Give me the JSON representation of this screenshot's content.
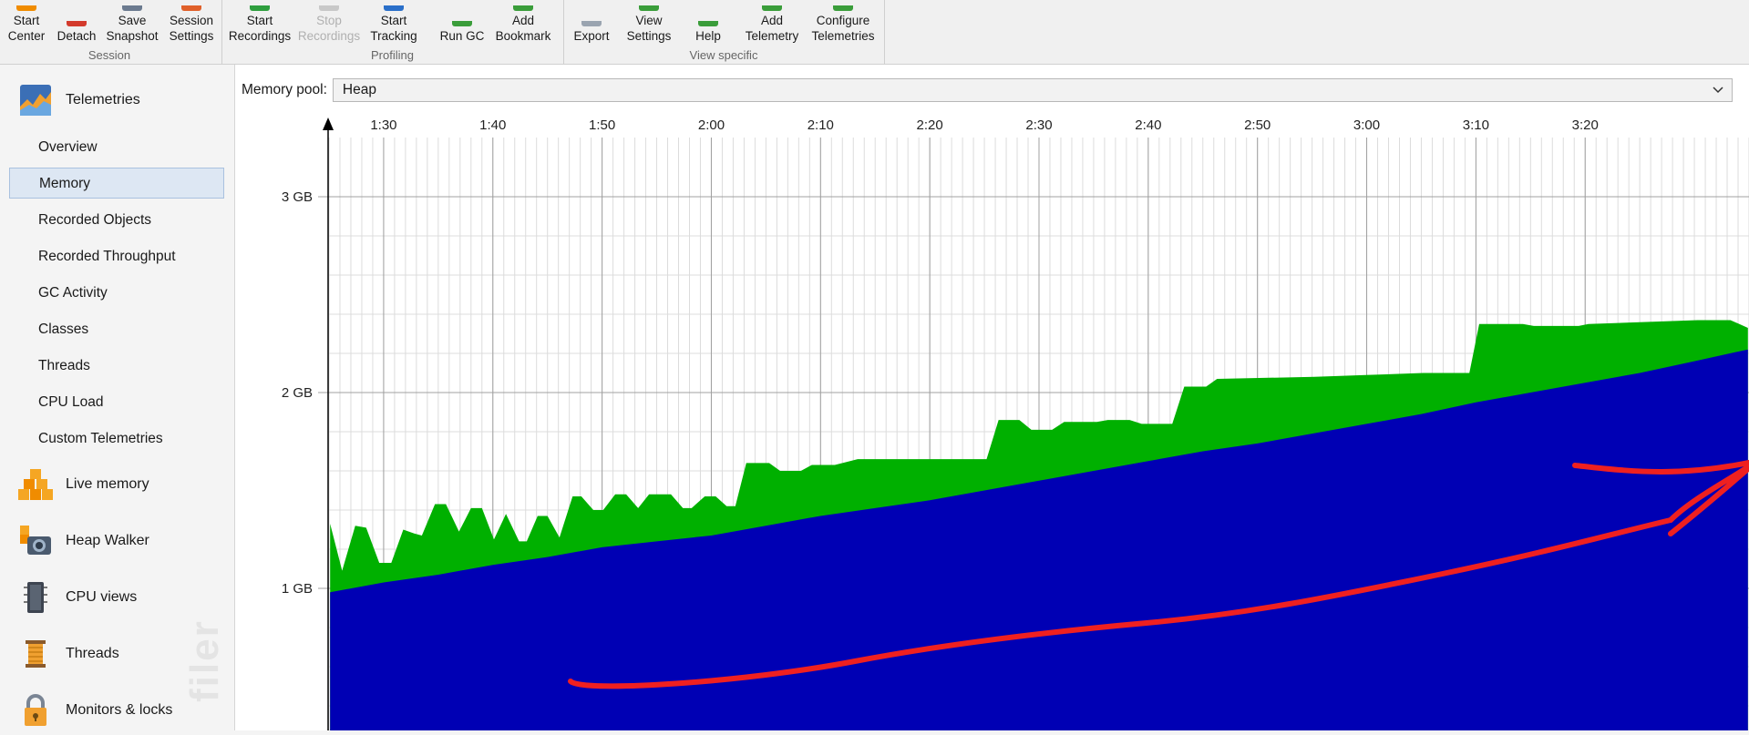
{
  "toolbar": {
    "groups": [
      {
        "label": "Session",
        "buttons": [
          {
            "label": "Start\nCenter",
            "icon": "start-center-icon",
            "color": "#f08c00"
          },
          {
            "label": "Detach",
            "icon": "detach-icon",
            "color": "#d33a2c"
          },
          {
            "label": "Save\nSnapshot",
            "icon": "save-snapshot-icon",
            "color": "#6b7a8f"
          },
          {
            "label": "Session\nSettings",
            "icon": "session-settings-icon",
            "color": "#e0602a"
          }
        ]
      },
      {
        "label": "Profiling",
        "buttons": [
          {
            "label": "Start\nRecordings",
            "icon": "start-recordings-icon",
            "color": "#2e9e3e"
          },
          {
            "label": "Stop\nRecordings",
            "icon": "stop-recordings-icon",
            "color": "#c8c8c8",
            "disabled": true
          },
          {
            "label": "Start\nTracking",
            "icon": "start-tracking-icon",
            "color": "#2a6fc9"
          },
          {
            "label": "Run GC",
            "icon": "run-gc-icon",
            "color": "#3a9d3a"
          },
          {
            "label": "Add\nBookmark",
            "icon": "add-bookmark-icon",
            "color": "#3a9d3a"
          }
        ]
      },
      {
        "label": "View specific",
        "buttons": [
          {
            "label": "Export",
            "icon": "export-icon",
            "color": "#9aa4b0"
          },
          {
            "label": "View\nSettings",
            "icon": "view-settings-icon",
            "color": "#3a9d3a"
          },
          {
            "label": "Help",
            "icon": "help-icon",
            "color": "#3a9d3a"
          },
          {
            "label": "Add\nTelemetry",
            "icon": "add-telemetry-icon",
            "color": "#3a9d3a"
          },
          {
            "label": "Configure\nTelemetries",
            "icon": "configure-telemetries-icon",
            "color": "#3a9d3a"
          }
        ]
      }
    ]
  },
  "sidebar": {
    "telemetries_title": "Telemetries",
    "sub_items": [
      {
        "label": "Overview"
      },
      {
        "label": "Memory",
        "selected": true
      },
      {
        "label": "Recorded Objects"
      },
      {
        "label": "Recorded Throughput"
      },
      {
        "label": "GC Activity"
      },
      {
        "label": "Classes"
      },
      {
        "label": "Threads"
      },
      {
        "label": "CPU Load"
      },
      {
        "label": "Custom Telemetries"
      }
    ],
    "sections": [
      {
        "label": "Live memory",
        "icon": "live-memory-icon"
      },
      {
        "label": "Heap Walker",
        "icon": "heap-walker-icon"
      },
      {
        "label": "CPU views",
        "icon": "cpu-views-icon"
      },
      {
        "label": "Threads",
        "icon": "threads-icon"
      },
      {
        "label": "Monitors & locks",
        "icon": "monitors-locks-icon"
      }
    ],
    "watermark": "filer"
  },
  "main": {
    "pool_label": "Memory pool:",
    "pool_value": "Heap"
  },
  "colors": {
    "free_heap": "#00b000",
    "used_heap": "#0000b4",
    "annotation": "#ef2020",
    "grid_major": "#a0a0a0",
    "grid_minor": "#dcdcdc"
  },
  "chart_data": {
    "type": "area",
    "x_unit": "minutes",
    "x_ticks": [
      "1:30",
      "1:40",
      "1:50",
      "2:00",
      "2:10",
      "2:20",
      "2:30",
      "2:40",
      "2:50",
      "3:00",
      "3:10",
      "3:20"
    ],
    "y_ticks": [
      "1 GB",
      "2 GB",
      "3 GB"
    ],
    "y_unit": "GB",
    "ylim": [
      0,
      3.0
    ],
    "xlim": [
      85,
      215
    ],
    "series": [
      {
        "name": "used",
        "points": [
          [
            85.1,
            0.98
          ],
          [
            90,
            1.03
          ],
          [
            95,
            1.07
          ],
          [
            100,
            1.12
          ],
          [
            105,
            1.16
          ],
          [
            110,
            1.21
          ],
          [
            115,
            1.24
          ],
          [
            120,
            1.27
          ],
          [
            125,
            1.32
          ],
          [
            130,
            1.37
          ],
          [
            135,
            1.41
          ],
          [
            140,
            1.45
          ],
          [
            145,
            1.5
          ],
          [
            150,
            1.55
          ],
          [
            155,
            1.6
          ],
          [
            160,
            1.65
          ],
          [
            165,
            1.7
          ],
          [
            170,
            1.74
          ],
          [
            175,
            1.79
          ],
          [
            180,
            1.84
          ],
          [
            185,
            1.89
          ],
          [
            190,
            1.95
          ],
          [
            195,
            2.0
          ],
          [
            200,
            2.05
          ],
          [
            205,
            2.1
          ],
          [
            210,
            2.16
          ],
          [
            214.9,
            2.22
          ]
        ]
      },
      {
        "name": "total",
        "points": [
          [
            85.1,
            1.33
          ],
          [
            86.2,
            1.09
          ],
          [
            87.4,
            1.32
          ],
          [
            88.4,
            1.31
          ],
          [
            89.6,
            1.13
          ],
          [
            90.7,
            1.13
          ],
          [
            91.8,
            1.3
          ],
          [
            92.8,
            1.28
          ],
          [
            93.5,
            1.27
          ],
          [
            94.7,
            1.43
          ],
          [
            95.7,
            1.43
          ],
          [
            96.9,
            1.29
          ],
          [
            98.0,
            1.41
          ],
          [
            99.0,
            1.41
          ],
          [
            100.1,
            1.25
          ],
          [
            101.2,
            1.38
          ],
          [
            102.4,
            1.24
          ],
          [
            103.1,
            1.24
          ],
          [
            104.1,
            1.37
          ],
          [
            105.0,
            1.37
          ],
          [
            106.1,
            1.26
          ],
          [
            107.3,
            1.47
          ],
          [
            108.1,
            1.47
          ],
          [
            109.2,
            1.4
          ],
          [
            110.1,
            1.4
          ],
          [
            111.2,
            1.48
          ],
          [
            112.2,
            1.48
          ],
          [
            113.3,
            1.41
          ],
          [
            114.3,
            1.48
          ],
          [
            116.3,
            1.48
          ],
          [
            117.4,
            1.41
          ],
          [
            118.2,
            1.41
          ],
          [
            119.4,
            1.47
          ],
          [
            120.4,
            1.47
          ],
          [
            121.4,
            1.42
          ],
          [
            122.2,
            1.42
          ],
          [
            123.2,
            1.64
          ],
          [
            125.3,
            1.64
          ],
          [
            126.3,
            1.6
          ],
          [
            128.2,
            1.6
          ],
          [
            129.2,
            1.63
          ],
          [
            131.3,
            1.63
          ],
          [
            133.4,
            1.66
          ],
          [
            139.3,
            1.66
          ],
          [
            140.5,
            1.66
          ],
          [
            145.2,
            1.66
          ],
          [
            146.3,
            1.86
          ],
          [
            148.2,
            1.86
          ],
          [
            149.3,
            1.81
          ],
          [
            151.2,
            1.81
          ],
          [
            152.3,
            1.85
          ],
          [
            155.3,
            1.85
          ],
          [
            156.3,
            1.86
          ],
          [
            158.3,
            1.86
          ],
          [
            159.4,
            1.84
          ],
          [
            162.2,
            1.84
          ],
          [
            163.3,
            2.03
          ],
          [
            165.3,
            2.03
          ],
          [
            166.3,
            2.07
          ],
          [
            175.2,
            2.08
          ],
          [
            180.2,
            2.09
          ],
          [
            185.2,
            2.1
          ],
          [
            189.4,
            2.1
          ],
          [
            190.3,
            2.35
          ],
          [
            194.3,
            2.35
          ],
          [
            195.3,
            2.34
          ],
          [
            199.4,
            2.34
          ],
          [
            200.3,
            2.35
          ],
          [
            205.3,
            2.36
          ],
          [
            210.3,
            2.37
          ],
          [
            213.3,
            2.37
          ],
          [
            214.9,
            2.33
          ]
        ]
      }
    ]
  }
}
